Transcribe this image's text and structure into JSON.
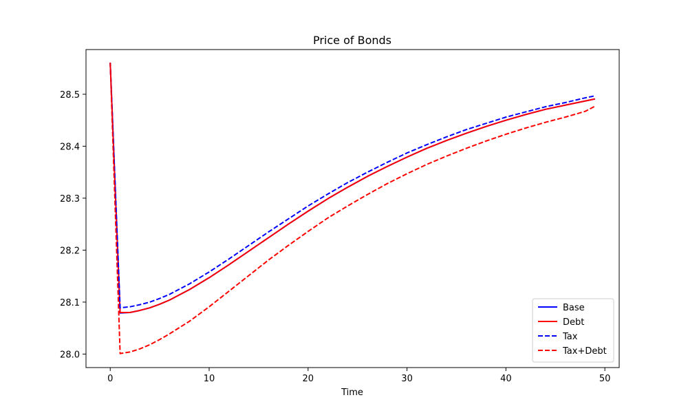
{
  "chart_data": {
    "type": "line",
    "title": "Price of Bonds",
    "xlabel": "Time",
    "ylabel": "",
    "xlim": [
      -2.45,
      51.45
    ],
    "ylim": [
      27.974,
      28.586
    ],
    "xticks": [
      0,
      10,
      20,
      30,
      40,
      50
    ],
    "yticks": [
      28.0,
      28.1,
      28.2,
      28.3,
      28.4,
      28.5
    ],
    "ytick_labels": [
      "28.0",
      "28.1",
      "28.2",
      "28.3",
      "28.4",
      "28.5"
    ],
    "grid": false,
    "legend_position": "lower-right",
    "series": [
      {
        "name": "Base",
        "color": "#0000ff",
        "dash": "solid",
        "x": [
          0,
          1,
          2,
          3,
          4,
          5,
          6,
          8,
          10,
          12,
          14,
          16,
          18,
          20,
          22,
          24,
          26,
          28,
          30,
          32,
          34,
          36,
          38,
          40,
          42,
          44,
          46,
          48,
          49
        ],
        "y": [
          28.56,
          28.079,
          28.08,
          28.084,
          28.089,
          28.096,
          28.104,
          28.124,
          28.147,
          28.172,
          28.198,
          28.224,
          28.25,
          28.275,
          28.299,
          28.321,
          28.342,
          28.361,
          28.379,
          28.396,
          28.411,
          28.425,
          28.438,
          28.45,
          28.461,
          28.471,
          28.479,
          28.487,
          28.491
        ]
      },
      {
        "name": "Debt",
        "color": "#ff0000",
        "dash": "solid",
        "x": [
          0,
          1,
          2,
          3,
          4,
          5,
          6,
          8,
          10,
          12,
          14,
          16,
          18,
          20,
          22,
          24,
          26,
          28,
          30,
          32,
          34,
          36,
          38,
          40,
          42,
          44,
          46,
          48,
          49
        ],
        "y": [
          28.561,
          28.08,
          28.08,
          28.084,
          28.089,
          28.096,
          28.104,
          28.124,
          28.147,
          28.172,
          28.198,
          28.224,
          28.25,
          28.275,
          28.299,
          28.321,
          28.342,
          28.361,
          28.379,
          28.396,
          28.411,
          28.425,
          28.438,
          28.45,
          28.461,
          28.471,
          28.479,
          28.487,
          28.491
        ]
      },
      {
        "name": "Tax",
        "color": "#0000ff",
        "dash": "dashed",
        "x": [
          0,
          1,
          2,
          3,
          4,
          5,
          6,
          8,
          10,
          12,
          14,
          16,
          18,
          20,
          22,
          24,
          26,
          28,
          30,
          32,
          34,
          36,
          38,
          40,
          42,
          44,
          46,
          48,
          49
        ],
        "y": [
          28.56,
          28.089,
          28.091,
          28.095,
          28.1,
          28.107,
          28.115,
          28.135,
          28.158,
          28.183,
          28.209,
          28.235,
          28.26,
          28.285,
          28.308,
          28.33,
          28.35,
          28.369,
          28.387,
          28.403,
          28.418,
          28.432,
          28.444,
          28.456,
          28.466,
          28.476,
          28.484,
          28.493,
          28.497
        ]
      },
      {
        "name": "Tax+Debt",
        "color": "#ff0000",
        "dash": "dashed",
        "x": [
          0,
          1,
          2,
          3,
          4,
          5,
          6,
          8,
          10,
          12,
          14,
          16,
          18,
          20,
          22,
          24,
          26,
          28,
          30,
          32,
          34,
          36,
          38,
          40,
          42,
          44,
          46,
          48,
          49
        ],
        "y": [
          28.56,
          28.001,
          28.004,
          28.01,
          28.018,
          28.028,
          28.039,
          28.063,
          28.091,
          28.121,
          28.151,
          28.181,
          28.209,
          28.236,
          28.262,
          28.285,
          28.307,
          28.328,
          28.347,
          28.365,
          28.381,
          28.396,
          28.41,
          28.423,
          28.435,
          28.446,
          28.456,
          28.467,
          28.477
        ]
      }
    ]
  }
}
